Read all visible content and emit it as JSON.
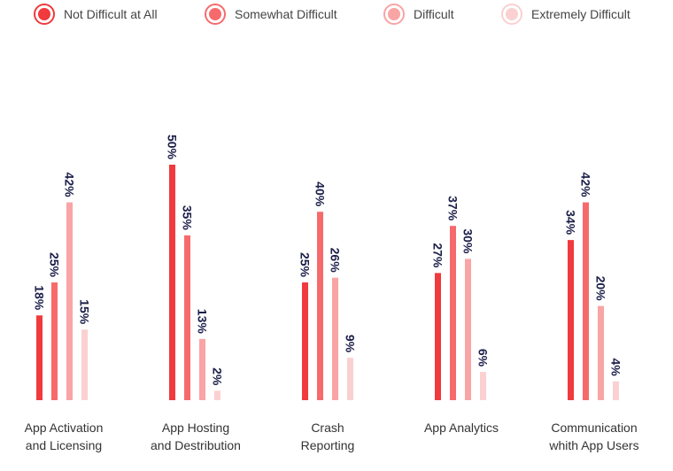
{
  "legend": [
    {
      "label": "Not Difficult at All",
      "color": "#f03a3e"
    },
    {
      "label": "Somewhat Difficult",
      "color": "#f76a6c"
    },
    {
      "label": "Difficult",
      "color": "#f9a4a5"
    },
    {
      "label": "Extremely Difficult",
      "color": "#fbd0d1"
    }
  ],
  "chart_data": {
    "type": "bar",
    "categories": [
      [
        "App Activation",
        "and Licensing"
      ],
      [
        "App Hosting",
        "and Destribution"
      ],
      [
        "Crash",
        "Reporting"
      ],
      [
        "App Analytics"
      ],
      [
        "Communication",
        "whith App Users"
      ]
    ],
    "series": [
      {
        "name": "Not Difficult at All",
        "color": "#f03a3e",
        "values": [
          18,
          50,
          25,
          27,
          34
        ],
        "labels": [
          "18%",
          "50%",
          "25%",
          "27%",
          "34%"
        ]
      },
      {
        "name": "Somewhat Difficult",
        "color": "#f76a6c",
        "values": [
          25,
          35,
          40,
          37,
          42
        ],
        "labels": [
          "25%",
          "35%",
          "40%",
          "37%",
          "42%"
        ]
      },
      {
        "name": "Difficult",
        "color": "#f9a4a5",
        "values": [
          42,
          13,
          26,
          30,
          20
        ],
        "labels": [
          "42%",
          "13%",
          "26%",
          "30%",
          "20%"
        ]
      },
      {
        "name": "Extremely Difficult",
        "color": "#fbd0d1",
        "values": [
          15,
          2,
          9,
          6,
          4
        ],
        "labels": [
          "15%",
          "2%",
          "9%",
          "6%",
          "4%"
        ]
      }
    ],
    "ylim": [
      0,
      50
    ],
    "grid": false,
    "legend_position": "top",
    "title": "",
    "xlabel": "",
    "ylabel": ""
  }
}
